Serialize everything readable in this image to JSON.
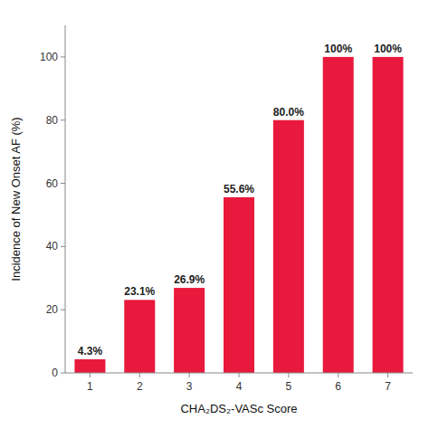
{
  "chart_data": {
    "type": "bar",
    "xlabel": "CHA₂DS₂-VASc Score",
    "ylabel": "Incidence of New Onset AF (%)",
    "categories": [
      "1",
      "2",
      "3",
      "4",
      "5",
      "6",
      "7"
    ],
    "values": [
      4.3,
      23.1,
      26.9,
      55.6,
      80.0,
      100.0,
      100.0
    ],
    "value_labels": [
      "4.3%",
      "23.1%",
      "26.9%",
      "55.6%",
      "80.0%",
      "100%",
      "100%"
    ],
    "data_labels": true,
    "color": "#E8193C",
    "ylim": [
      0,
      110
    ],
    "yticks": [
      0,
      20,
      40,
      60,
      80,
      100
    ],
    "grid": false
  }
}
